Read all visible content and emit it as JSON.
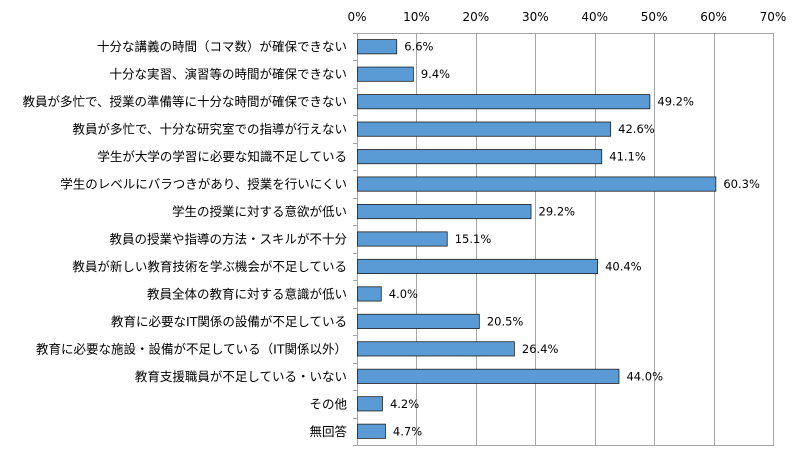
{
  "chart_data": {
    "type": "bar",
    "orientation": "horizontal",
    "categories": [
      "十分な講義の時間（コマ数）が確保できない",
      "十分な実習、演習等の時間が確保できない",
      "教員が多忙で、授業の準備等に十分な時間が確保できない",
      "教員が多忙で、十分な研究室での指導が行えない",
      "学生が大学の学習に必要な知識不足している",
      "学生のレベルにバラつきがあり、授業を行いにくい",
      "学生の授業に対する意欲が低い",
      "教員の授業や指導の方法・スキルが不十分",
      "教員が新しい教育技術を学ぶ機会が不足している",
      "教員全体の教育に対する意識が低い",
      "教育に必要なIT関係の設備が不足している",
      "教育に必要な施設・設備が不足している（IT関係以外）",
      "教育支援職員が不足している・いない",
      "その他",
      "無回答"
    ],
    "values": [
      6.6,
      9.4,
      49.2,
      42.6,
      41.1,
      60.3,
      29.2,
      15.1,
      40.4,
      4.0,
      20.5,
      26.4,
      44.0,
      4.2,
      4.7
    ],
    "value_labels": [
      "6.6%",
      "9.4%",
      "49.2%",
      "42.6%",
      "41.1%",
      "60.3%",
      "29.2%",
      "15.1%",
      "40.4%",
      "4.0%",
      "20.5%",
      "26.4%",
      "44.0%",
      "4.2%",
      "4.7%"
    ],
    "xlim": [
      0,
      70
    ],
    "xticks": [
      0,
      10,
      20,
      30,
      40,
      50,
      60,
      70
    ],
    "xtick_labels": [
      "0%",
      "10%",
      "20%",
      "30%",
      "40%",
      "50%",
      "60%",
      "70%"
    ],
    "x_axis_position": "top",
    "grid": true,
    "legend": "none",
    "title": "",
    "xlabel": "",
    "ylabel": ""
  },
  "colors": {
    "bar_fill": "#5b9bd5",
    "bar_stroke": "#1f1f1f",
    "gridline": "#a6a6a6",
    "text": "#000000"
  }
}
